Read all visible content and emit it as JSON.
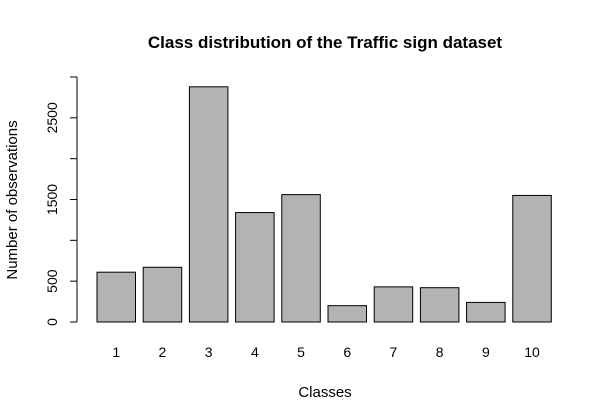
{
  "chart_data": {
    "type": "bar",
    "title": "Class distribution of the Traffic sign dataset",
    "xlabel": "Classes",
    "ylabel": "Number of observations",
    "categories": [
      "1",
      "2",
      "3",
      "4",
      "5",
      "6",
      "7",
      "8",
      "9",
      "10"
    ],
    "values": [
      610,
      670,
      2880,
      1340,
      1560,
      200,
      430,
      420,
      240,
      1550
    ],
    "ylim": [
      0,
      3000
    ],
    "y_ticks": [
      0,
      500,
      1000,
      1500,
      2000,
      2500,
      3000
    ],
    "y_tick_labels": [
      "0",
      "500",
      "",
      "1500",
      "",
      "2500",
      ""
    ],
    "bar_color": "#b3b3b3",
    "grid": false,
    "legend": "none"
  }
}
